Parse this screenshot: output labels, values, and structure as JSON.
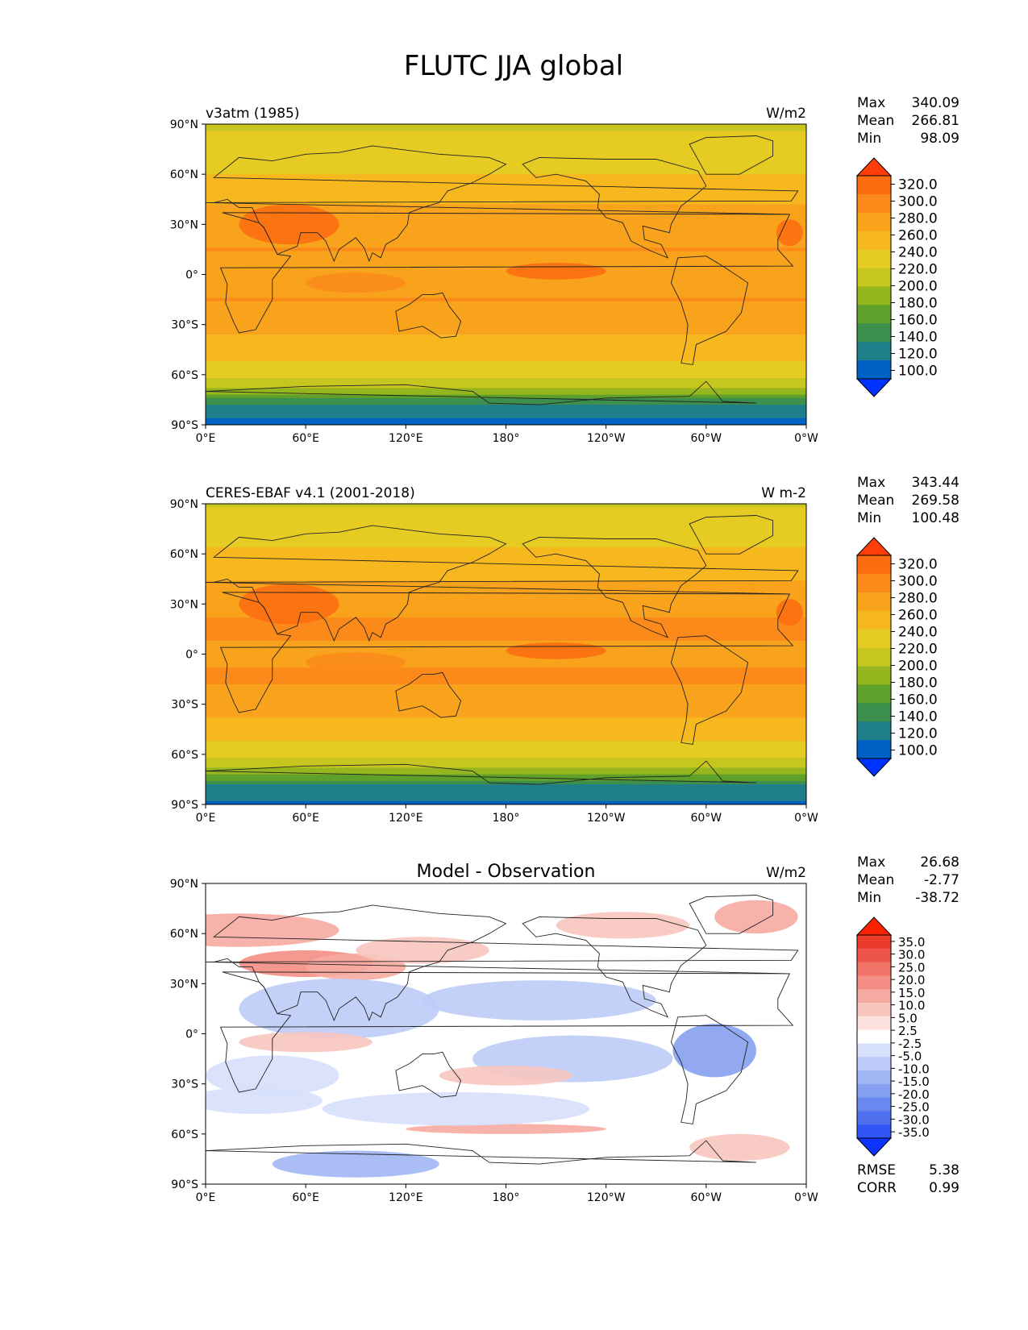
{
  "title": "FLUTC JJA global",
  "colors": {
    "abs_levels": [
      "#0033ff",
      "#0061c4",
      "#1f7f8a",
      "#3d8f4e",
      "#5fa02a",
      "#95b61e",
      "#c7c61f",
      "#e6cc22",
      "#f7b81f",
      "#f9a21c",
      "#fb8a1a",
      "#fd6c10",
      "#ff3d0a"
    ],
    "diff_levels": [
      "#0f33ff",
      "#2f55f7",
      "#4e70ef",
      "#6a88ef",
      "#86a0f1",
      "#a1b6f4",
      "#bccbf7",
      "#d6e0fb",
      "#ffffff",
      "#fbe0dd",
      "#f8c5bf",
      "#f6aaa1",
      "#f48e84",
      "#f17267",
      "#ee5549",
      "#ec3a2b",
      "#ff2200"
    ],
    "land_outline": "#222222"
  },
  "panels": [
    {
      "left_label": "v3atm (1985)",
      "center_label": "",
      "units": "W/m2",
      "stats": [
        {
          "label": "Max",
          "value": "340.09"
        },
        {
          "label": "Mean",
          "value": "266.81"
        },
        {
          "label": "Min",
          "value": "98.09"
        }
      ],
      "colorbar": {
        "type": "absolute",
        "ticks": [
          "320.0",
          "300.0",
          "280.0",
          "260.0",
          "240.0",
          "220.0",
          "200.0",
          "180.0",
          "160.0",
          "140.0",
          "120.0",
          "100.0"
        ]
      },
      "extra_stats": []
    },
    {
      "left_label": "CERES-EBAF v4.1 (2001-2018)",
      "center_label": "",
      "units": "W m-2",
      "stats": [
        {
          "label": "Max",
          "value": "343.44"
        },
        {
          "label": "Mean",
          "value": "269.58"
        },
        {
          "label": "Min",
          "value": "100.48"
        }
      ],
      "colorbar": {
        "type": "absolute",
        "ticks": [
          "320.0",
          "300.0",
          "280.0",
          "260.0",
          "240.0",
          "220.0",
          "200.0",
          "180.0",
          "160.0",
          "140.0",
          "120.0",
          "100.0"
        ]
      },
      "extra_stats": []
    },
    {
      "left_label": "",
      "center_label": "Model - Observation",
      "units": "W/m2",
      "stats": [
        {
          "label": "Max",
          "value": "26.68"
        },
        {
          "label": "Mean",
          "value": "-2.77"
        },
        {
          "label": "Min",
          "value": "-38.72"
        }
      ],
      "colorbar": {
        "type": "diff",
        "ticks": [
          "35.0",
          "30.0",
          "25.0",
          "20.0",
          "15.0",
          "10.0",
          "5.0",
          "2.5",
          "-2.5",
          "-5.0",
          "-10.0",
          "-15.0",
          "-20.0",
          "-25.0",
          "-30.0",
          "-35.0"
        ]
      },
      "extra_stats": [
        {
          "label": "RMSE",
          "value": "5.38"
        },
        {
          "label": "CORR",
          "value": "0.99"
        }
      ]
    }
  ],
  "chart_data": [
    {
      "type": "heatmap",
      "title": "v3atm (1985)",
      "units": "W/m2",
      "x_ticks": [
        "0°E",
        "60°E",
        "120°E",
        "180°",
        "120°W",
        "60°W",
        "0°W"
      ],
      "y_ticks": [
        "90°N",
        "60°N",
        "30°N",
        "0°",
        "30°S",
        "60°S",
        "90°S"
      ],
      "xlim": [
        0,
        360
      ],
      "ylim": [
        -90,
        90
      ],
      "levels": [
        100,
        120,
        140,
        160,
        180,
        200,
        220,
        240,
        260,
        280,
        300,
        320
      ],
      "zonal_profile": {
        "lat": [
          90,
          75,
          60,
          45,
          30,
          15,
          0,
          -15,
          -30,
          -45,
          -60,
          -70,
          -80,
          -90
        ],
        "value": [
          215,
          230,
          240,
          255,
          275,
          280,
          275,
          280,
          268,
          250,
          225,
          190,
          125,
          115
        ]
      },
      "max": 340.09,
      "mean": 266.81,
      "min": 98.09
    },
    {
      "type": "heatmap",
      "title": "CERES-EBAF v4.1 (2001-2018)",
      "units": "W m-2",
      "x_ticks": [
        "0°E",
        "60°E",
        "120°E",
        "180°",
        "120°W",
        "60°W",
        "0°W"
      ],
      "y_ticks": [
        "90°N",
        "60°N",
        "30°N",
        "0°",
        "30°S",
        "60°S",
        "90°S"
      ],
      "xlim": [
        0,
        360
      ],
      "ylim": [
        -90,
        90
      ],
      "levels": [
        100,
        120,
        140,
        160,
        180,
        200,
        220,
        240,
        260,
        280,
        300,
        320
      ],
      "zonal_profile": {
        "lat": [
          90,
          75,
          60,
          45,
          30,
          15,
          0,
          -15,
          -30,
          -45,
          -60,
          -70,
          -80,
          -90
        ],
        "value": [
          218,
          232,
          243,
          258,
          278,
          282,
          278,
          282,
          270,
          252,
          228,
          192,
          128,
          118
        ]
      },
      "max": 343.44,
      "mean": 269.58,
      "min": 100.48
    },
    {
      "type": "heatmap",
      "title": "Model - Observation",
      "units": "W/m2",
      "x_ticks": [
        "0°E",
        "60°E",
        "120°E",
        "180°",
        "120°W",
        "60°W",
        "0°W"
      ],
      "y_ticks": [
        "90°N",
        "60°N",
        "30°N",
        "0°",
        "30°S",
        "60°S",
        "90°S"
      ],
      "xlim": [
        0,
        360
      ],
      "ylim": [
        -90,
        90
      ],
      "levels": [
        -35,
        -30,
        -25,
        -20,
        -15,
        -10,
        -5,
        -2.5,
        2.5,
        5,
        10,
        15,
        20,
        25,
        30,
        35
      ],
      "max": 26.68,
      "mean": -2.77,
      "min": -38.72,
      "rmse": 5.38,
      "corr": 0.99
    }
  ]
}
